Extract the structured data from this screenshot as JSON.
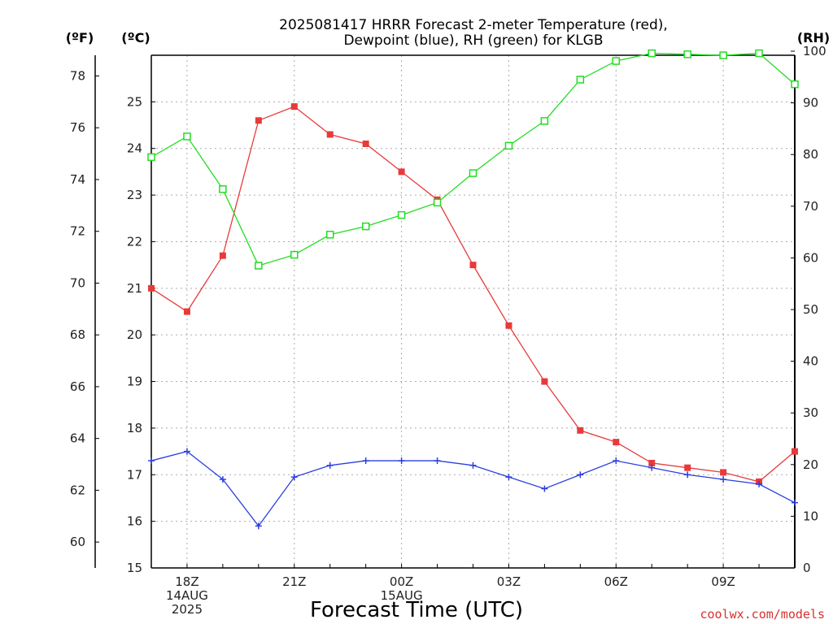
{
  "title_line1": "2025081417 HRRR Forecast 2-meter Temperature (red),",
  "title_line2": "Dewpoint (blue), RH (green) for KLGB",
  "unit_f": "(ºF)",
  "unit_c": "(ºC)",
  "unit_rh": "(RH)",
  "x_axis_title": "Forecast Time (UTC)",
  "credit": "coolwx.com/models",
  "chart_data": {
    "type": "line",
    "title": "2025081417 HRRR Forecast 2-meter Temperature (red), Dewpoint (blue), RH (green) for KLGB",
    "xlabel": "Forecast Time (UTC)",
    "x": [
      17,
      18,
      19,
      20,
      21,
      22,
      23,
      0,
      1,
      2,
      3,
      4,
      5,
      6,
      7,
      8,
      9,
      10,
      11
    ],
    "x_hours_utc": [
      "17Z",
      "18Z",
      "19Z",
      "20Z",
      "21Z",
      "22Z",
      "23Z",
      "00Z",
      "01Z",
      "02Z",
      "03Z",
      "04Z",
      "05Z",
      "06Z",
      "07Z",
      "08Z",
      "09Z",
      "10Z",
      "11Z"
    ],
    "x_tick_labels": [
      {
        "index": 1,
        "lines": [
          "18Z",
          "14AUG",
          "2025"
        ]
      },
      {
        "index": 4,
        "lines": [
          "21Z"
        ]
      },
      {
        "index": 7,
        "lines": [
          "00Z",
          "15AUG"
        ]
      },
      {
        "index": 10,
        "lines": [
          "03Z"
        ]
      },
      {
        "index": 13,
        "lines": [
          "06Z"
        ]
      },
      {
        "index": 16,
        "lines": [
          "09Z"
        ]
      }
    ],
    "left_axis_f": {
      "ylim": [
        58.2,
        78.9
      ],
      "ticks": [
        60,
        62,
        64,
        66,
        68,
        70,
        72,
        74,
        76,
        78
      ]
    },
    "left_axis_c": {
      "ylim": [
        15,
        26
      ],
      "ticks": [
        15,
        16,
        17,
        18,
        19,
        20,
        21,
        22,
        23,
        24,
        25
      ]
    },
    "right_axis_rh": {
      "ylim": [
        0,
        100
      ],
      "ticks": [
        0,
        10,
        20,
        30,
        40,
        50,
        60,
        70,
        80,
        90,
        100
      ]
    },
    "grid": true,
    "series": [
      {
        "name": "2-meter Temperature (red)",
        "axis": "C",
        "color": "#e83a3a",
        "marker": "filled-square",
        "values": [
          21.0,
          20.5,
          21.7,
          24.6,
          24.9,
          24.3,
          24.1,
          23.5,
          22.9,
          21.5,
          20.2,
          19.0,
          17.95,
          17.7,
          17.25,
          17.15,
          17.05,
          16.85,
          17.5
        ]
      },
      {
        "name": "Dewpoint (blue)",
        "axis": "C",
        "color": "#2b3fe0",
        "marker": "plus",
        "values": [
          17.3,
          17.5,
          16.9,
          15.9,
          16.95,
          17.2,
          17.3,
          17.3,
          17.3,
          17.2,
          16.95,
          16.7,
          17.0,
          17.3,
          17.15,
          17.0,
          16.9,
          16.8,
          16.4
        ]
      },
      {
        "name": "RH (green)",
        "axis": "RH",
        "color": "#22dd22",
        "marker": "open-square",
        "values": [
          79.5,
          83.5,
          73.3,
          58.5,
          60.6,
          64.5,
          66.1,
          68.3,
          70.7,
          76.4,
          81.7,
          86.5,
          94.5,
          98.1,
          99.6,
          99.4,
          99.2,
          99.6,
          93.6
        ]
      }
    ]
  }
}
